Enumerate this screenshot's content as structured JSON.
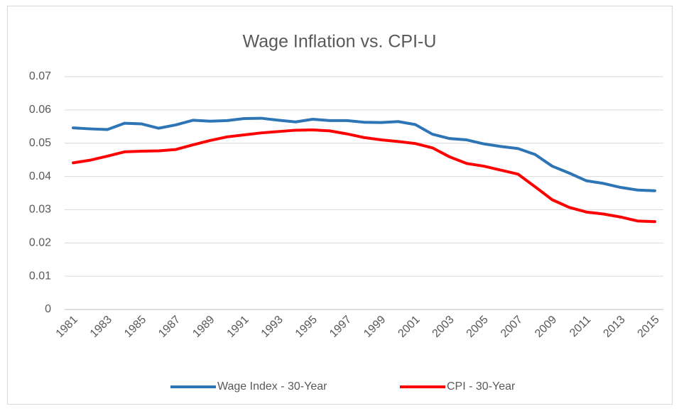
{
  "chart_data": {
    "type": "line",
    "title": "Wage Inflation vs. CPI-U",
    "categories": [
      "1981",
      null,
      "1983",
      null,
      "1985",
      null,
      "1987",
      null,
      "1989",
      null,
      "1991",
      null,
      "1993",
      null,
      "1995",
      null,
      "1997",
      null,
      "1999",
      null,
      "2001",
      null,
      "2003",
      null,
      "2005",
      null,
      "2007",
      null,
      "2009",
      null,
      "2011",
      null,
      "2013",
      null,
      "2015"
    ],
    "series": [
      {
        "name": "Wage Index - 30-Year",
        "color": "#2e75b6",
        "values": [
          0.0546,
          0.0543,
          0.0541,
          0.056,
          0.0558,
          0.0545,
          0.0555,
          0.0569,
          0.0566,
          0.0568,
          0.0574,
          0.0575,
          0.0569,
          0.0564,
          0.0572,
          0.0568,
          0.0568,
          0.0563,
          0.0562,
          0.0565,
          0.0556,
          0.0527,
          0.0514,
          0.051,
          0.0498,
          0.049,
          0.0484,
          0.0466,
          0.0431,
          0.041,
          0.0387,
          0.0379,
          0.0367,
          0.0359,
          0.0357
        ]
      },
      {
        "name": "CPI - 30-Year",
        "color": "#ff0000",
        "values": [
          0.0441,
          0.0449,
          0.0461,
          0.0474,
          0.0476,
          0.0477,
          0.0481,
          0.0495,
          0.0508,
          0.0519,
          0.0525,
          0.0531,
          0.0535,
          0.0539,
          0.054,
          0.0537,
          0.0528,
          0.0517,
          0.051,
          0.0505,
          0.0499,
          0.0486,
          0.0459,
          0.0439,
          0.0431,
          0.0419,
          0.0407,
          0.0369,
          0.033,
          0.0307,
          0.0293,
          0.0287,
          0.0278,
          0.0266,
          0.0264
        ]
      }
    ],
    "ylim": [
      0,
      0.07
    ],
    "yticks": [
      0,
      0.01,
      0.02,
      0.03,
      0.04,
      0.05,
      0.06,
      0.07
    ],
    "grid": true,
    "legend": "bottom"
  }
}
